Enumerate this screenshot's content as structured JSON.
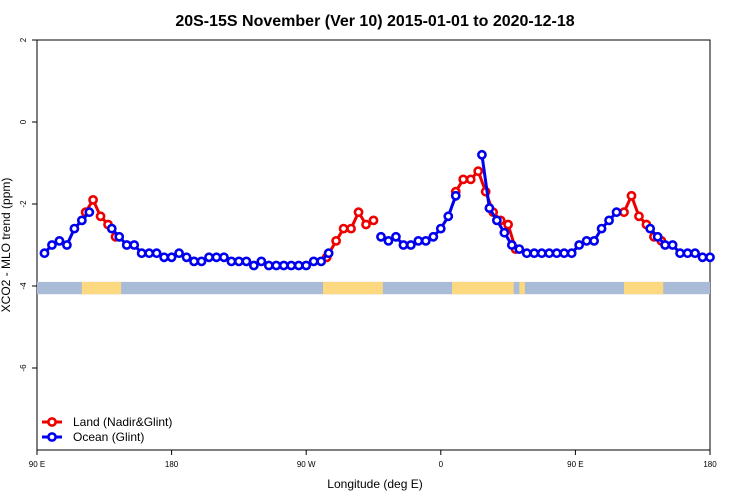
{
  "chart_data": {
    "type": "line",
    "title": "20S-15S November (Ver 10)   2015-01-01 to 2020-12-18",
    "xlabel": "Longitude (deg E)",
    "ylabel": "XCO2 - MLO trend (ppm)",
    "xlim": [
      90,
      450
    ],
    "ylim": [
      -8,
      2
    ],
    "x_ticks": [
      {
        "value": 90,
        "label": "90 E"
      },
      {
        "value": 162,
        "label": "180"
      },
      {
        "value": 234,
        "label": "90 W"
      },
      {
        "value": 306,
        "label": "0"
      },
      {
        "value": 378,
        "label": "90 E"
      },
      {
        "value": 450,
        "label": "180"
      }
    ],
    "y_ticks": [
      {
        "value": 2,
        "label": "2"
      },
      {
        "value": 0,
        "label": "0"
      },
      {
        "value": -2,
        "label": "-2"
      },
      {
        "value": -4,
        "label": "-4"
      },
      {
        "value": -6,
        "label": "-6"
      }
    ],
    "legend_position": "bottom-left",
    "series": [
      {
        "name": "Land (Nadir&Glint)",
        "color": "#ee0000",
        "points": [
          [
            116,
            -2.2
          ],
          [
            120,
            -1.9
          ],
          [
            124,
            -2.3
          ],
          [
            128,
            -2.5
          ],
          [
            132,
            -2.8
          ],
          [
            245,
            -3.3
          ],
          [
            250,
            -2.9
          ],
          [
            254,
            -2.6
          ],
          [
            258,
            -2.6
          ],
          [
            262,
            -2.2
          ],
          [
            266,
            -2.5
          ],
          [
            270,
            -2.4
          ],
          [
            314,
            -1.7
          ],
          [
            318,
            -1.4
          ],
          [
            322,
            -1.4
          ],
          [
            326,
            -1.2
          ],
          [
            330,
            -1.7
          ],
          [
            334,
            -2.2
          ],
          [
            338,
            -2.4
          ],
          [
            342,
            -2.5
          ],
          [
            346,
            -3.1
          ],
          [
            404,
            -2.2
          ],
          [
            408,
            -1.8
          ],
          [
            412,
            -2.3
          ],
          [
            416,
            -2.5
          ],
          [
            420,
            -2.8
          ],
          [
            424,
            -2.9
          ]
        ]
      },
      {
        "name": "Ocean (Glint)",
        "color": "#0000ee",
        "points": [
          [
            94,
            -3.2
          ],
          [
            98,
            -3.0
          ],
          [
            102,
            -2.9
          ],
          [
            106,
            -3.0
          ],
          [
            110,
            -2.6
          ],
          [
            114,
            -2.4
          ],
          [
            118,
            -2.2
          ],
          [
            130,
            -2.6
          ],
          [
            134,
            -2.8
          ],
          [
            138,
            -3.0
          ],
          [
            142,
            -3.0
          ],
          [
            146,
            -3.2
          ],
          [
            150,
            -3.2
          ],
          [
            154,
            -3.2
          ],
          [
            158,
            -3.3
          ],
          [
            162,
            -3.3
          ],
          [
            166,
            -3.2
          ],
          [
            170,
            -3.3
          ],
          [
            174,
            -3.4
          ],
          [
            178,
            -3.4
          ],
          [
            182,
            -3.3
          ],
          [
            186,
            -3.3
          ],
          [
            190,
            -3.3
          ],
          [
            194,
            -3.4
          ],
          [
            198,
            -3.4
          ],
          [
            202,
            -3.4
          ],
          [
            206,
            -3.5
          ],
          [
            210,
            -3.4
          ],
          [
            214,
            -3.5
          ],
          [
            218,
            -3.5
          ],
          [
            222,
            -3.5
          ],
          [
            226,
            -3.5
          ],
          [
            230,
            -3.5
          ],
          [
            234,
            -3.5
          ],
          [
            238,
            -3.4
          ],
          [
            242,
            -3.4
          ],
          [
            246,
            -3.2
          ],
          [
            274,
            -2.8
          ],
          [
            278,
            -2.9
          ],
          [
            282,
            -2.8
          ],
          [
            286,
            -3.0
          ],
          [
            290,
            -3.0
          ],
          [
            294,
            -2.9
          ],
          [
            298,
            -2.9
          ],
          [
            302,
            -2.8
          ],
          [
            306,
            -2.6
          ],
          [
            310,
            -2.3
          ],
          [
            314,
            -1.8
          ],
          [
            328,
            -0.8
          ],
          [
            332,
            -2.1
          ],
          [
            336,
            -2.4
          ],
          [
            340,
            -2.7
          ],
          [
            344,
            -3.0
          ],
          [
            348,
            -3.1
          ],
          [
            352,
            -3.2
          ],
          [
            356,
            -3.2
          ],
          [
            360,
            -3.2
          ],
          [
            364,
            -3.2
          ],
          [
            368,
            -3.2
          ],
          [
            372,
            -3.2
          ],
          [
            376,
            -3.2
          ],
          [
            380,
            -3.0
          ],
          [
            384,
            -2.9
          ],
          [
            388,
            -2.9
          ],
          [
            392,
            -2.6
          ],
          [
            396,
            -2.4
          ],
          [
            400,
            -2.2
          ],
          [
            418,
            -2.6
          ],
          [
            422,
            -2.8
          ],
          [
            426,
            -3.0
          ],
          [
            430,
            -3.0
          ],
          [
            434,
            -3.2
          ],
          [
            438,
            -3.2
          ],
          [
            442,
            -3.2
          ],
          [
            446,
            -3.3
          ],
          [
            450,
            -3.3
          ]
        ]
      }
    ],
    "surface_band": {
      "y_range": [
        -4.2,
        -3.9
      ],
      "ocean_color": "#a8bcd8",
      "land_color": "#fcd880",
      "land_segments": [
        [
          114,
          135
        ],
        [
          243,
          275
        ],
        [
          312,
          345
        ],
        [
          348,
          351
        ],
        [
          404,
          425
        ]
      ]
    }
  }
}
